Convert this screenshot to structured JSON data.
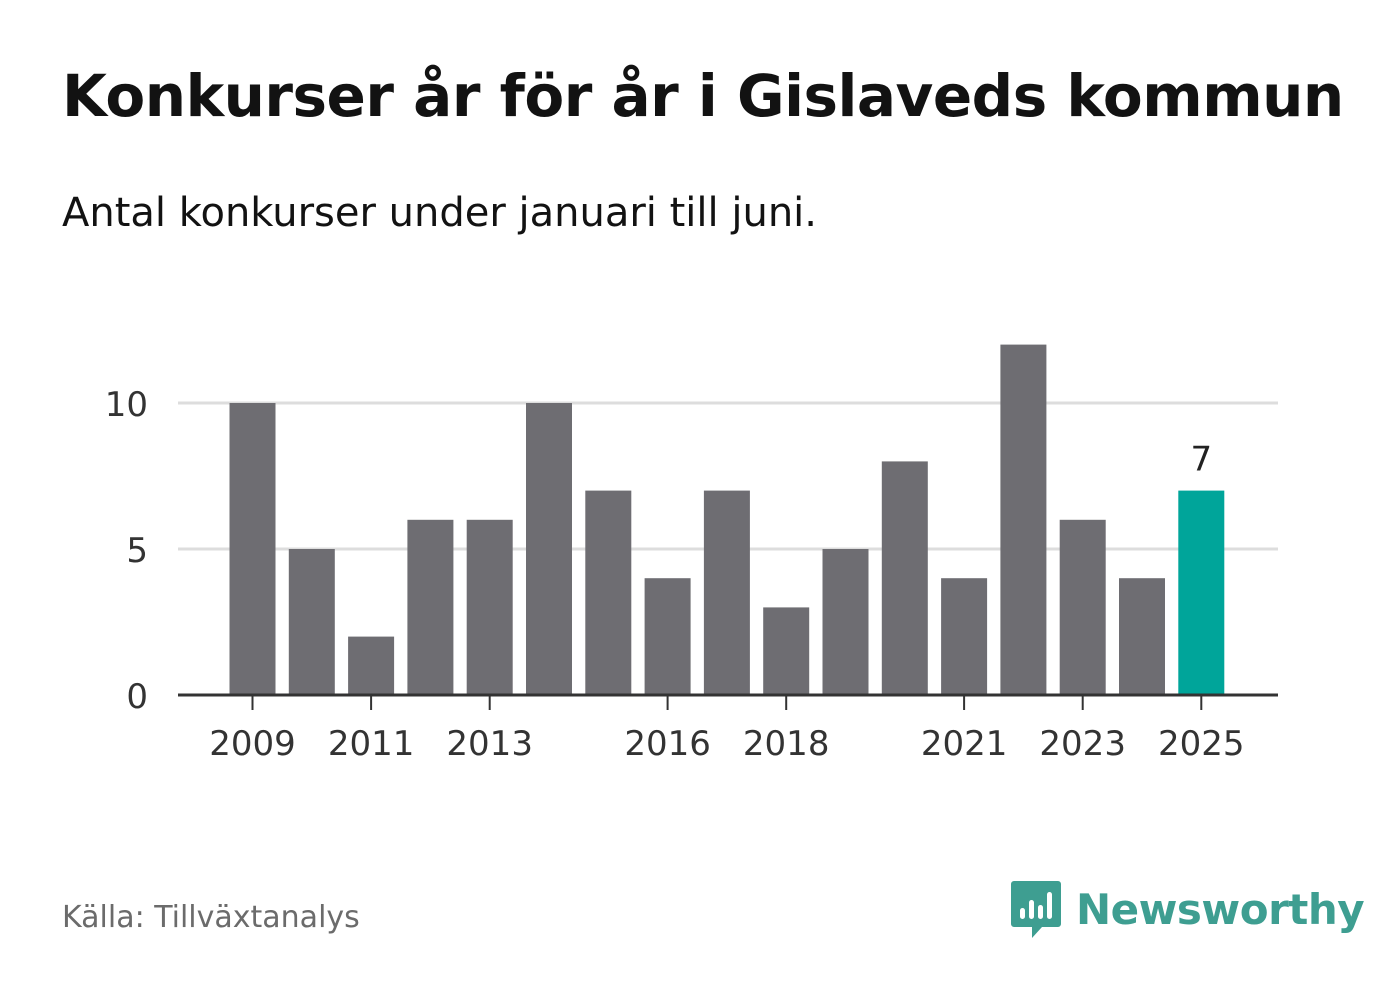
{
  "title": "Konkurser år för år i Gislaveds kommun",
  "subtitle": "Antal konkurser under januari till juni.",
  "source": "Källa: Tillväxtanalys",
  "brand": "Newsworthy",
  "colors": {
    "bar": "#6e6d72",
    "highlight": "#00a59a",
    "grid": "#dddddd",
    "axis": "#333333",
    "brand": "#3e9e91"
  },
  "chart_data": {
    "type": "bar",
    "categories": [
      "2009",
      "2010",
      "2011",
      "2012",
      "2013",
      "2014",
      "2015",
      "2016",
      "2017",
      "2018",
      "2019",
      "2020",
      "2021",
      "2022",
      "2023",
      "2024",
      "2025"
    ],
    "values": [
      10,
      5,
      2,
      6,
      6,
      10,
      7,
      4,
      7,
      3,
      5,
      8,
      4,
      12,
      6,
      4,
      7
    ],
    "x_tick_labels": [
      "2009",
      "2011",
      "2013",
      "2016",
      "2018",
      "2021",
      "2023",
      "2025"
    ],
    "y_ticks": [
      0,
      5,
      10
    ],
    "ylim": [
      0,
      12
    ],
    "highlight_category": "2025",
    "data_labels": [
      {
        "category": "2025",
        "text": "7"
      }
    ],
    "grid": true
  }
}
